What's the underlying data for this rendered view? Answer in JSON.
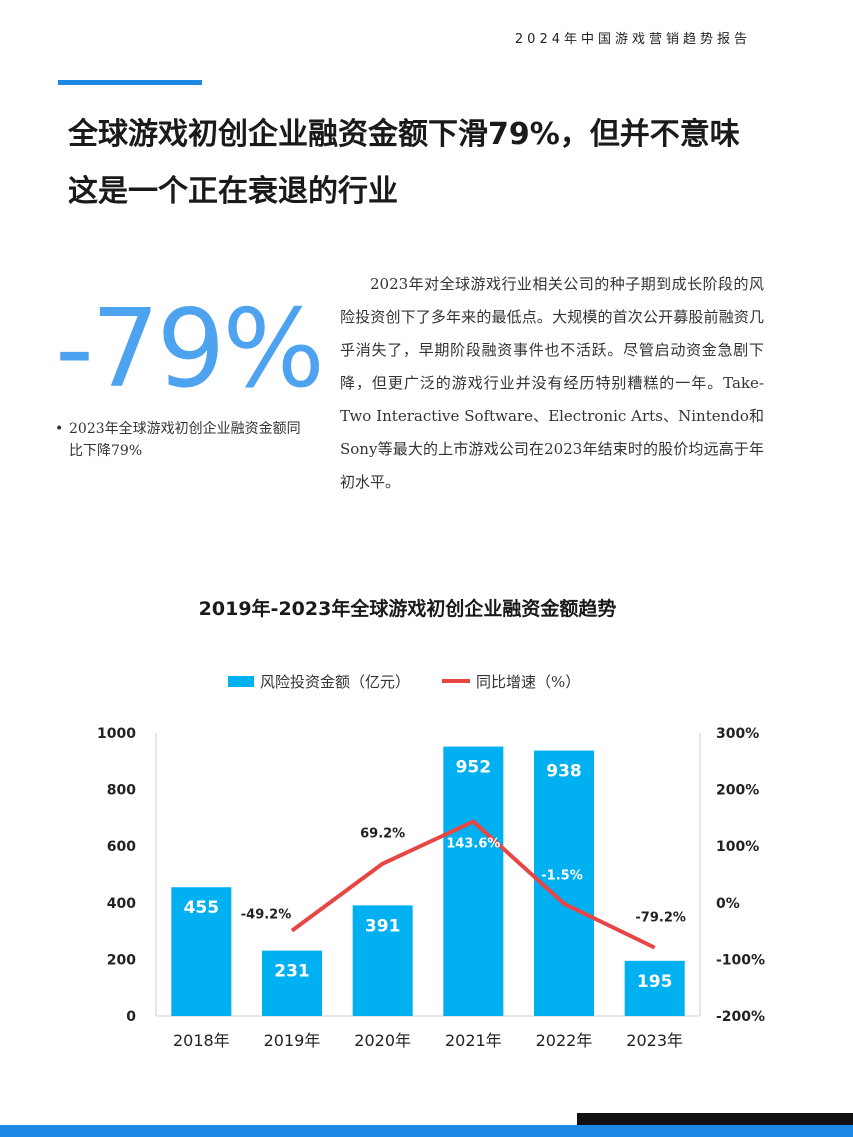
{
  "report": {
    "title": "2024年中国游戏营销趋势报告"
  },
  "headline": {
    "line1": "全球游戏初创企业融资金额下滑79%，但并不意味",
    "line2": "这是一个正在衰退的行业"
  },
  "stat": {
    "value": "-79%",
    "bullet": "•",
    "note": "2023年全球游戏初创企业融资金额同比下降79%"
  },
  "body": {
    "paragraph": "2023年对全球游戏行业相关公司的种子期到成长阶段的风险投资创下了多年来的最低点。大规模的首次公开募股前融资几乎消失了，早期阶段融资事件也不活跃。尽管启动资金急剧下降，但更广泛的游戏行业并没有经历特别糟糕的一年。Take-Two Interactive Software、Electronic Arts、Nintendo和Sony等最大的上市游戏公司在2023年结束时的股价均远高于年初水平。"
  },
  "colors": {
    "accent": "#1e88e5",
    "bar": "#00b0f0",
    "line": "#e84545",
    "stat": "#4da3f0"
  },
  "chart_data": {
    "type": "bar",
    "title": "2019年-2023年全球游戏初创企业融资金额趋势",
    "categories": [
      "2018年",
      "2019年",
      "2020年",
      "2021年",
      "2022年",
      "2023年"
    ],
    "series": [
      {
        "name": "风险投资金额（亿元）",
        "type": "bar",
        "axis": "left",
        "values": [
          455,
          231,
          391,
          952,
          938,
          195
        ]
      },
      {
        "name": "同比增速（%）",
        "type": "line",
        "axis": "right",
        "values": [
          null,
          -49.2,
          69.2,
          143.6,
          -1.5,
          -79.2
        ],
        "labels": [
          "",
          "-49.2%",
          "69.2%",
          "143.6%",
          "-1.5%",
          "-79.2%"
        ]
      }
    ],
    "ylim_left": [
      0,
      1000
    ],
    "yticks_left": [
      "0",
      "200",
      "400",
      "600",
      "800",
      "1000"
    ],
    "ylim_right": [
      -200,
      300
    ],
    "yticks_right": [
      "-200%",
      "-100%",
      "0%",
      "100%",
      "200%",
      "300%"
    ],
    "grid": false,
    "legend": "top"
  }
}
